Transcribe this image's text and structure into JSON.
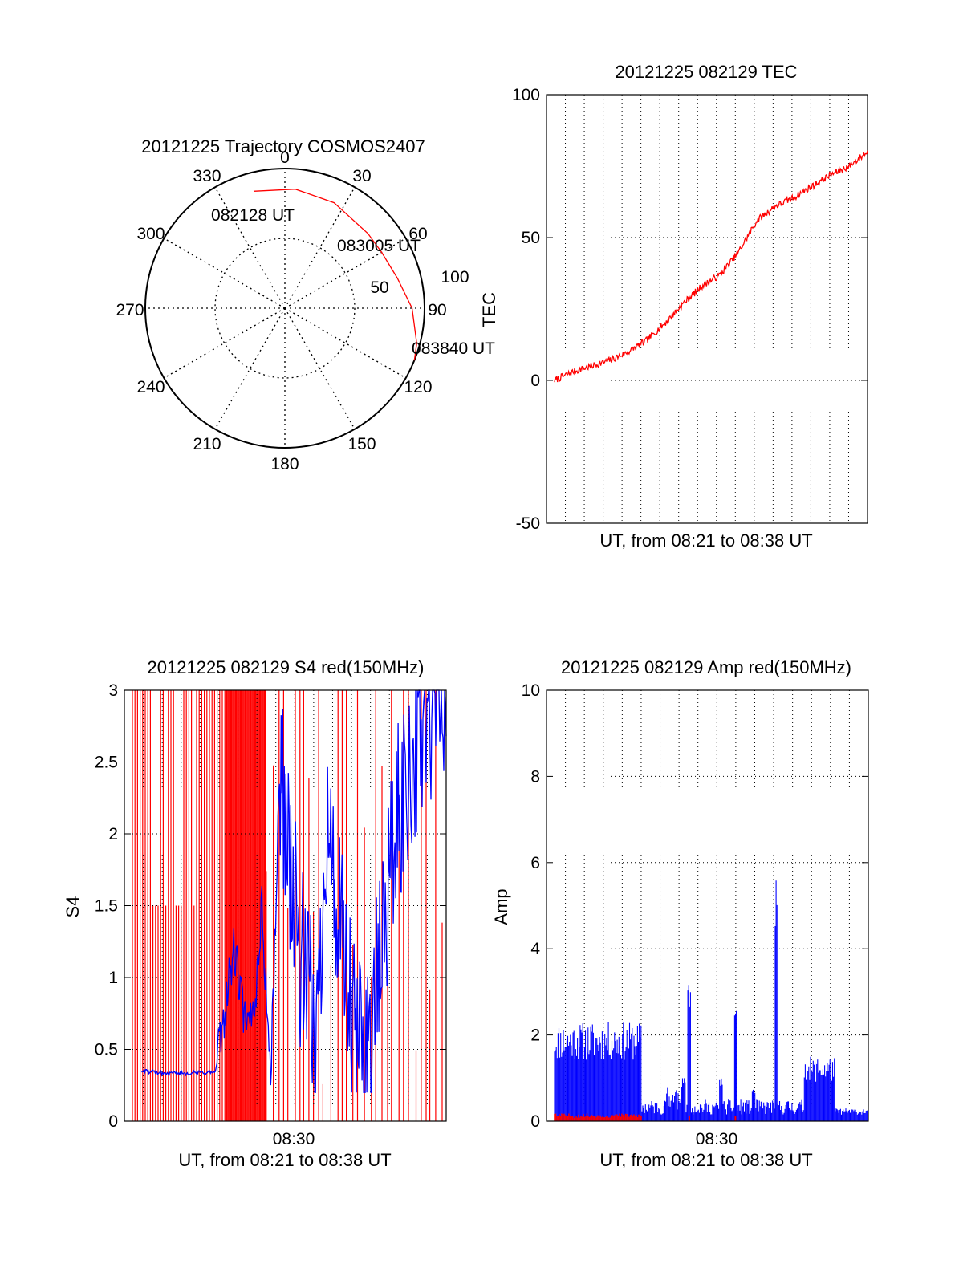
{
  "colors": {
    "red_series": "#ff0000",
    "blue_series": "#0000ff",
    "axis": "#000000",
    "grid": "#000000"
  },
  "chart_data": [
    {
      "type": "polar",
      "title": "20121225 Trajectory COSMOS2407",
      "angle_labels": [
        "0",
        "30",
        "60",
        "90",
        "120",
        "150",
        "180",
        "210",
        "240",
        "270",
        "300",
        "330"
      ],
      "radial_labels": [
        "50",
        "100"
      ],
      "radial_axis_label": "TEC",
      "grid": true,
      "trajectory": {
        "points": [
          {
            "azimuth": 345,
            "elevation": 78
          },
          {
            "azimuth": 5,
            "elevation": 77
          },
          {
            "azimuth": 25,
            "elevation": 75
          },
          {
            "azimuth": 48,
            "elevation": 72
          },
          {
            "azimuth": 60,
            "elevation": 72
          },
          {
            "azimuth": 75,
            "elevation": 75
          },
          {
            "azimuth": 90,
            "elevation": 82
          },
          {
            "azimuth": 105,
            "elevation": 88
          },
          {
            "azimuth": 112,
            "elevation": 90
          }
        ],
        "annotations": [
          "082128 UT",
          "083005 UT",
          "083840 UT"
        ]
      }
    },
    {
      "type": "line",
      "title": "20121225 082129 TEC",
      "xlabel": "UT, from 08:21 to 08:38 UT",
      "ylabel": "TEC",
      "ylim": [
        -50,
        100
      ],
      "yticks": [
        "-50",
        "0",
        "50",
        "100"
      ],
      "grid": true,
      "series": [
        {
          "color": "red",
          "x_minutes": [
            0,
            1,
            2,
            3,
            4,
            5,
            6,
            7,
            8,
            9,
            10,
            11,
            12,
            13,
            14,
            15,
            16,
            17
          ],
          "values": [
            0,
            3,
            5,
            7,
            10,
            14,
            20,
            27,
            33,
            37,
            45,
            56,
            61,
            64,
            68,
            72,
            75,
            80
          ]
        }
      ]
    },
    {
      "type": "line",
      "title": "20121225 082129 S4 red(150MHz)",
      "xlabel": "UT, from 08:21 to 08:38 UT",
      "ylabel": "S4",
      "ylim": [
        0,
        3
      ],
      "yticks": [
        "0",
        "0.5",
        "1",
        "1.5",
        "2",
        "2.5",
        "3"
      ],
      "xticks": [
        "08:30"
      ],
      "grid": true,
      "series": [
        {
          "color": "red",
          "note": "values oscillating between 0 and 3 across the whole interval"
        },
        {
          "color": "blue",
          "x_minutes": [
            0.5,
            2,
            4,
            4.5,
            5.5,
            6.2,
            6.7,
            7,
            7.5,
            8,
            9,
            10,
            10.5,
            11,
            12,
            13,
            14,
            15,
            16,
            17
          ],
          "values": [
            0.35,
            0.33,
            0.34,
            0.34,
            1.2,
            0.6,
            0.9,
            1.5,
            0.3,
            2.5,
            1.2,
            0.5,
            2.2,
            1.5,
            0.55,
            0.6,
            1.8,
            2.5,
            2.8,
            2.9
          ]
        }
      ]
    },
    {
      "type": "line",
      "title": "20121225 082129 Amp red(150MHz)",
      "xlabel": "UT, from 08:21 to 08:38 UT",
      "ylabel": "Amp",
      "ylim": [
        0,
        10
      ],
      "yticks": [
        "0",
        "2",
        "4",
        "6",
        "8",
        "10"
      ],
      "xticks": [
        "08:30"
      ],
      "grid": true,
      "series": [
        {
          "color": "blue",
          "x_minutes": [
            0,
            4.7,
            5,
            7.3,
            7.5,
            9.8,
            12,
            13.5,
            15.2,
            17
          ],
          "values": [
            2.3,
            2.2,
            0.3,
            3.3,
            0.4,
            2.8,
            5.6,
            1.5,
            0.2,
            0.2
          ]
        },
        {
          "color": "red",
          "x_minutes": [
            0,
            4.7,
            5,
            17
          ],
          "values": [
            0.1,
            0.1,
            0.02,
            0.02
          ]
        }
      ]
    }
  ]
}
